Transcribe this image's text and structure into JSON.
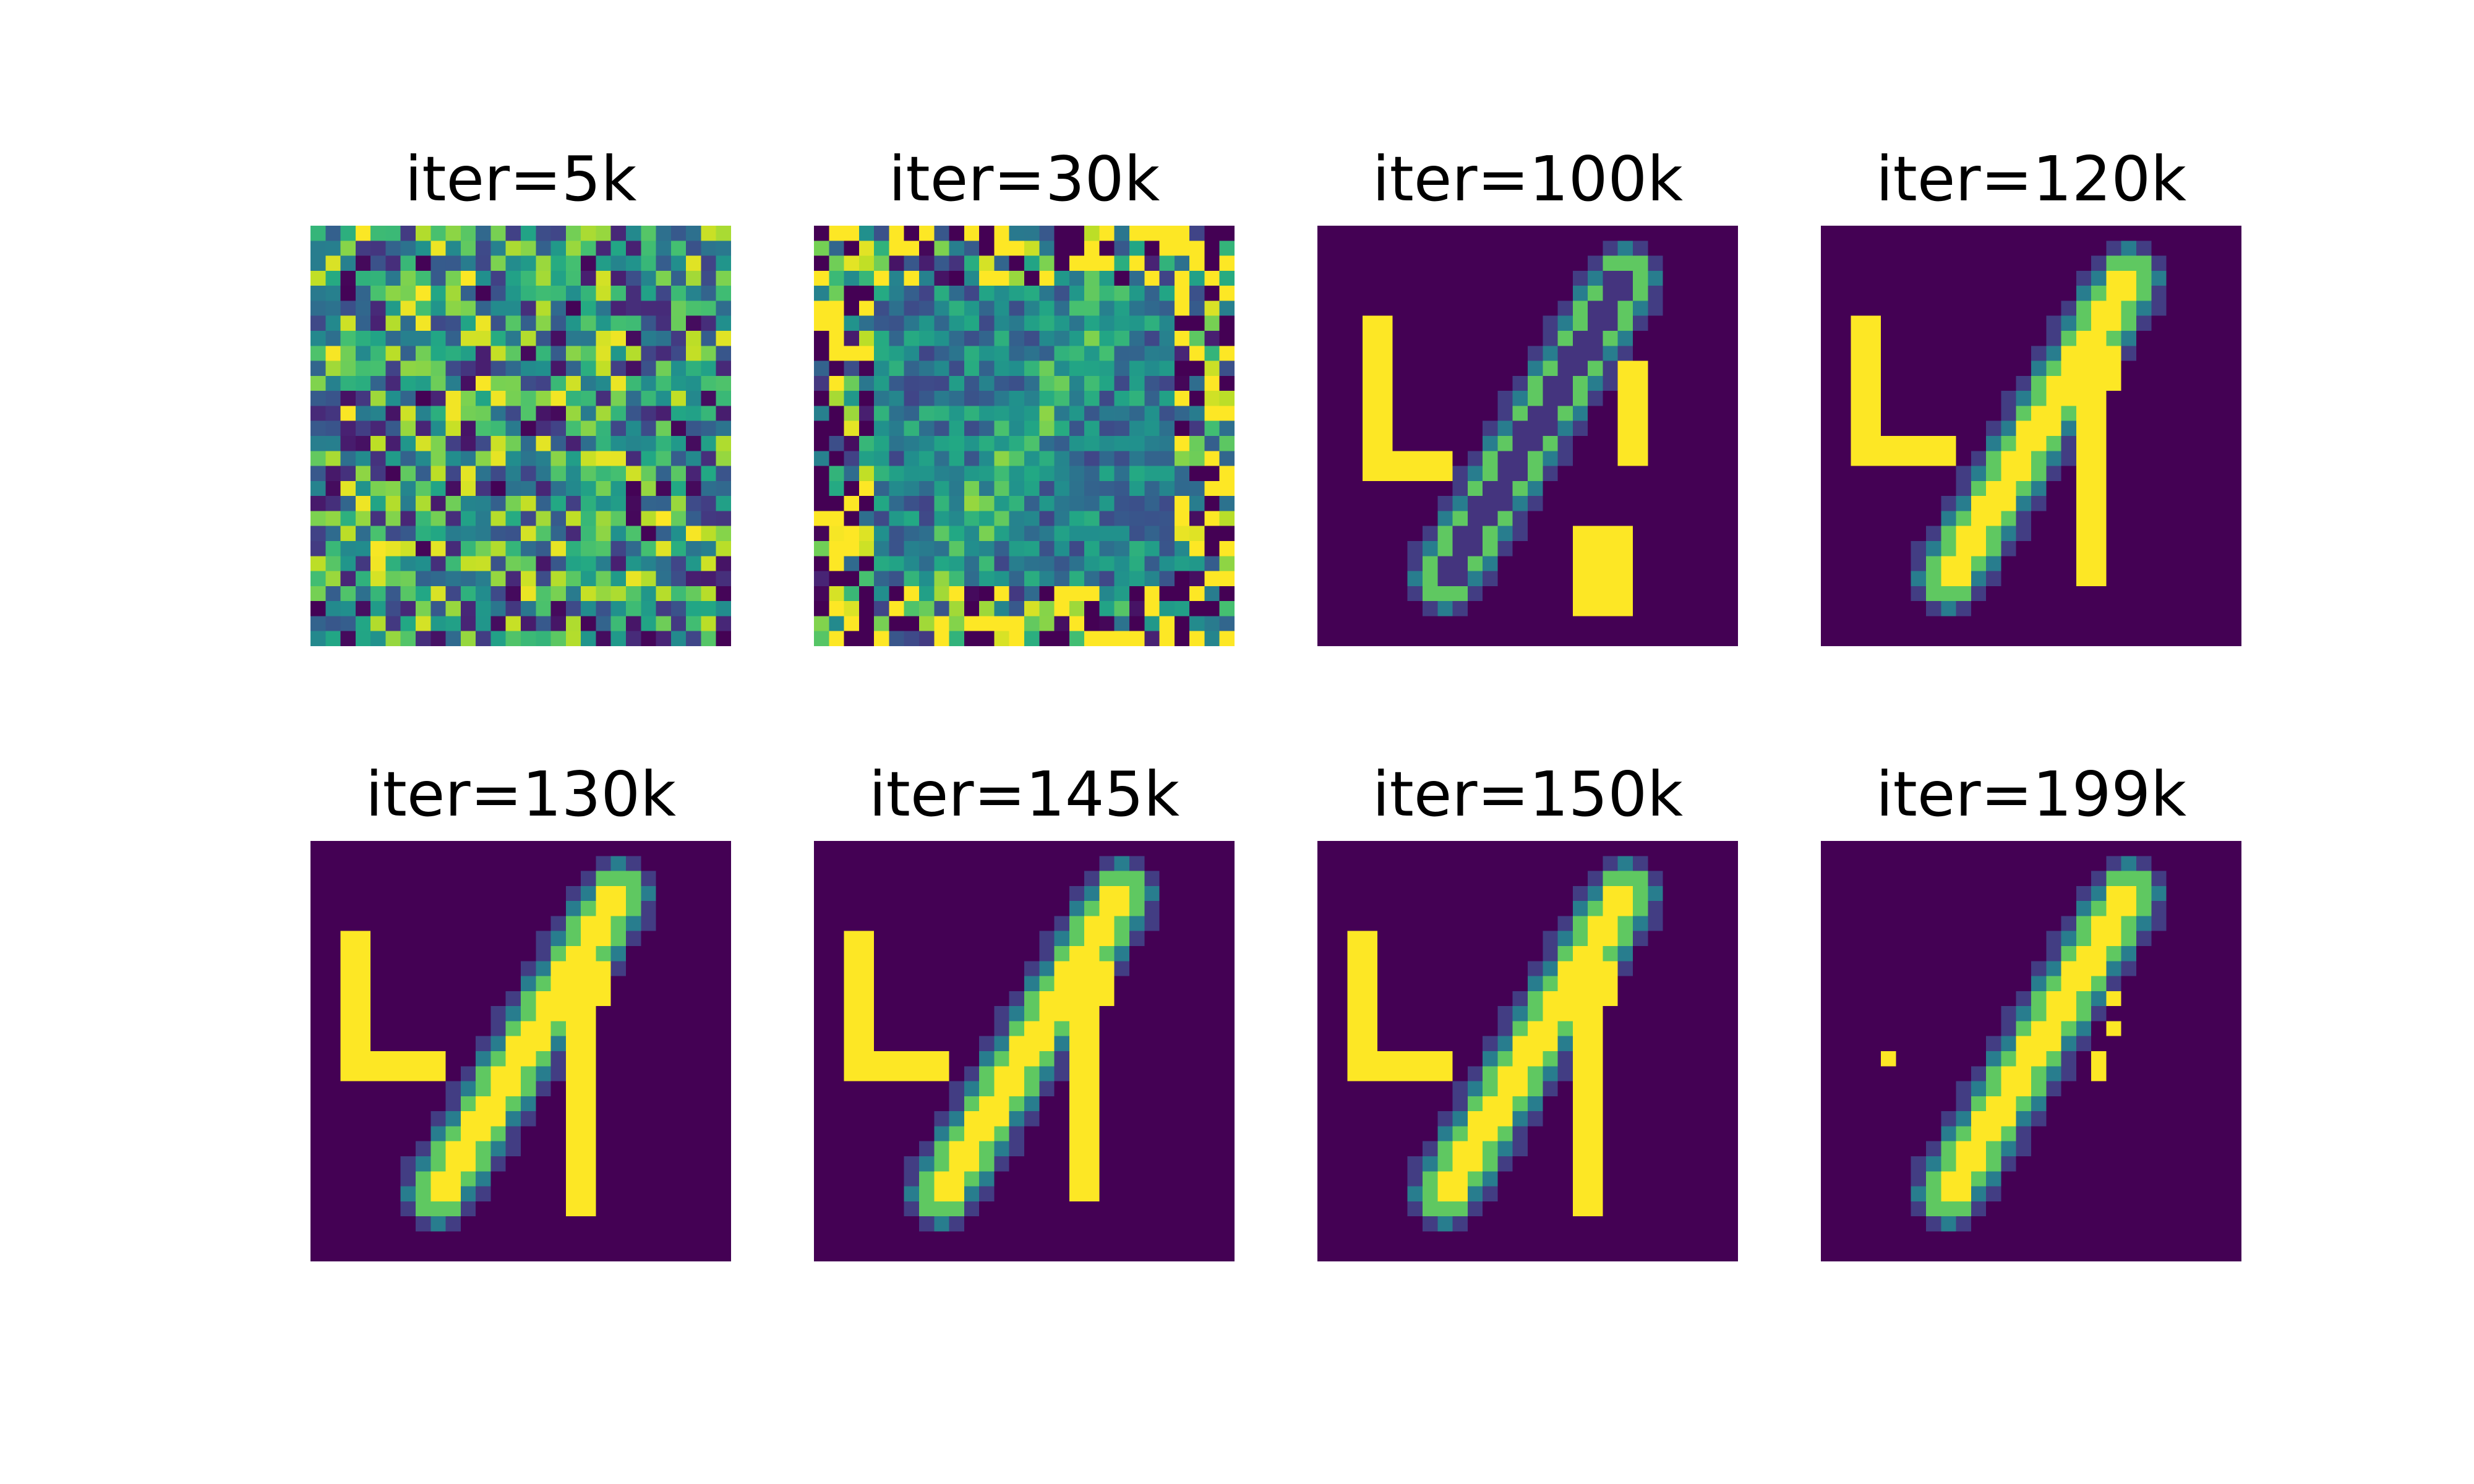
{
  "figure": {
    "panels": [
      {
        "title": "iter=5k",
        "stage": "noise"
      },
      {
        "title": "iter=30k",
        "stage": "noisy-ghost"
      },
      {
        "title": "iter=100k",
        "stage": "hollow-stroke"
      },
      {
        "title": "iter=120k",
        "stage": "digit-with-artifacts"
      },
      {
        "title": "iter=130k",
        "stage": "digit-with-artifacts"
      },
      {
        "title": "iter=145k",
        "stage": "digit-with-artifacts"
      },
      {
        "title": "iter=150k",
        "stage": "digit-with-artifacts"
      },
      {
        "title": "iter=199k",
        "stage": "clean-one"
      }
    ],
    "colormap": "viridis",
    "colors": {
      "background": "#ffffff",
      "low": "#440154",
      "mid": "#21918c",
      "high": "#fde725"
    }
  }
}
